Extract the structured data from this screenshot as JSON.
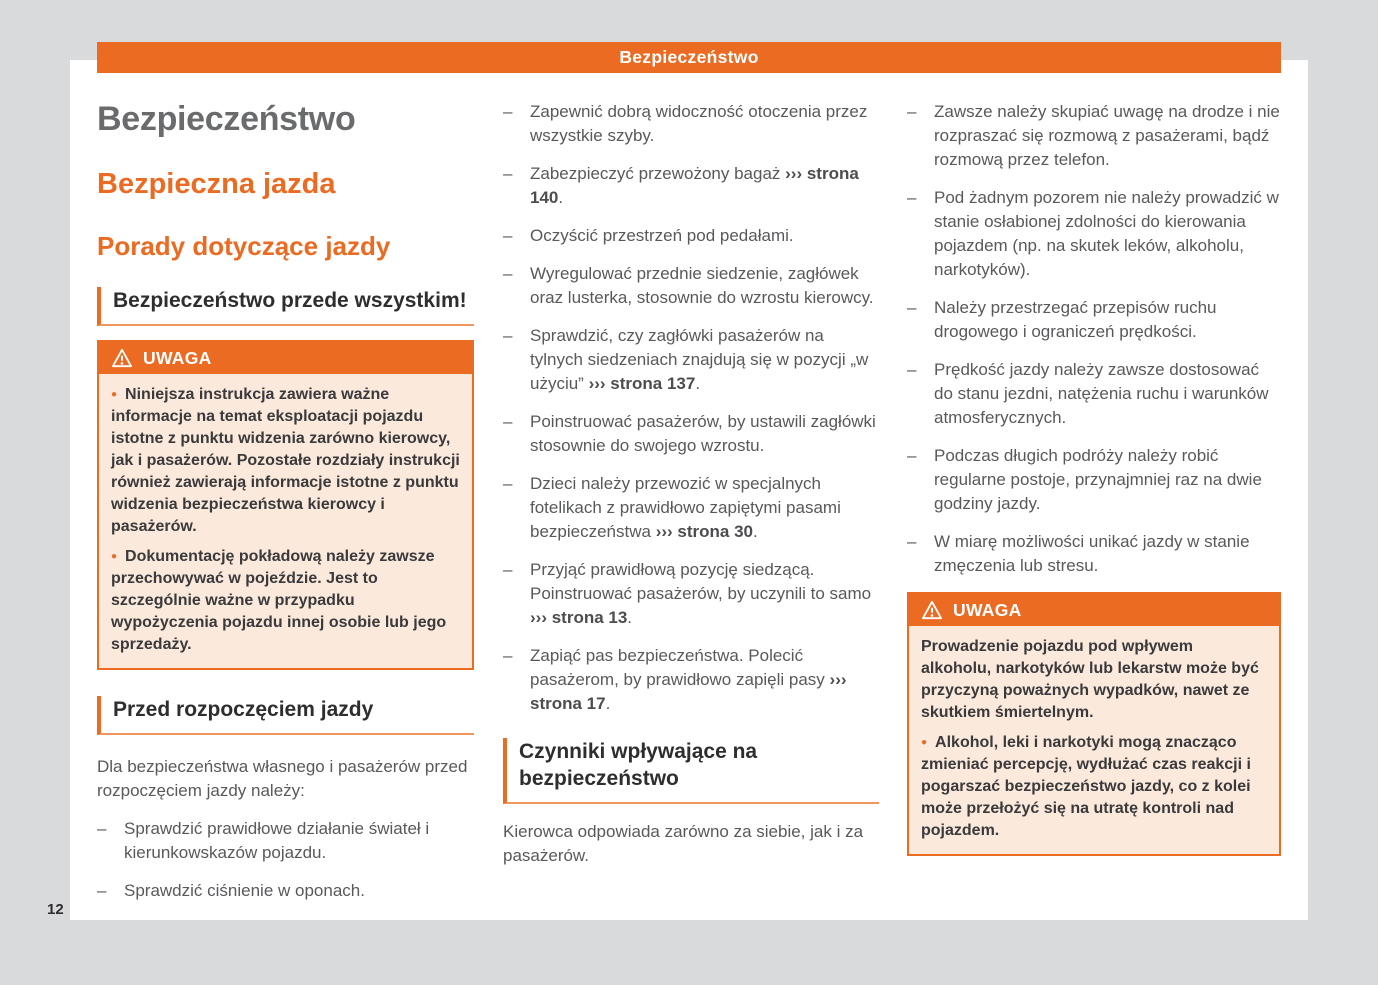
{
  "colors": {
    "accent": "#eb6b23",
    "warning_background": "#fbe9dc",
    "page_background": "#d9dadc",
    "body_text": "#58595b"
  },
  "page_number": "12",
  "header": {
    "title": "Bezpieczeństwo"
  },
  "left": {
    "title": "Bezpieczeństwo",
    "subtitle1": "Bezpieczna jazda",
    "subtitle2": "Porady dotyczące jazdy",
    "section1": "Bezpieczeństwo przede wszystkim!",
    "warning": {
      "title": "UWAGA",
      "icon": "warning-triangle-icon",
      "items": [
        {
          "bullet": true,
          "text": "Niniejsza instrukcja zawiera ważne informacje na temat eksploatacji pojazdu istotne z punktu widzenia zarówno kierowcy, jak i pasażerów. Pozostałe rozdziały instrukcji również zawierają informacje istotne z punktu widzenia bezpieczeństwa kierowcy i pasażerów."
        },
        {
          "bullet": true,
          "text": "Dokumentację pokładową należy zawsze przechowywać w pojeździe. Jest to szczególnie ważne w przypadku wypożyczenia pojazdu innej osobie lub jego sprzedaży."
        }
      ]
    },
    "section2": "Przed rozpoczęciem jazdy",
    "intro": "Dla bezpieczeństwa własnego i pasażerów przed rozpoczęciem jazdy należy:",
    "items": [
      "Sprawdzić prawidłowe działanie świateł i kierunkowskazów pojazdu.",
      "Sprawdzić ciśnienie w oponach."
    ]
  },
  "middle": {
    "items": [
      "Zapewnić dobrą widoczność otoczenia przez wszystkie szyby.",
      [
        {
          "t": "Zabezpieczyć przewożony bagaż "
        },
        {
          "t": "››› strona 140",
          "b": true
        },
        {
          "t": "."
        }
      ],
      "Oczyścić przestrzeń pod pedałami.",
      "Wyregulować przednie siedzenie, zagłówek oraz lusterka, stosownie do wzrostu kierowcy.",
      [
        {
          "t": "Sprawdzić, czy zagłówki pasażerów na tylnych siedzeniach znajdują się w pozycji „w użyciu” "
        },
        {
          "t": "››› strona 137",
          "b": true
        },
        {
          "t": "."
        }
      ],
      "Poinstruować pasażerów, by ustawili zagłówki stosownie do swojego wzrostu.",
      [
        {
          "t": "Dzieci należy przewozić w specjalnych fotelikach z prawidłowo zapiętymi pasami bezpieczeństwa "
        },
        {
          "t": "››› strona 30",
          "b": true
        },
        {
          "t": "."
        }
      ],
      [
        {
          "t": "Przyjąć prawidłową pozycję siedzącą. Poinstruować pasażerów, by uczynili to samo "
        },
        {
          "t": "››› strona 13",
          "b": true
        },
        {
          "t": "."
        }
      ],
      [
        {
          "t": "Zapiąć pas bezpieczeństwa. Polecić pasażerom, by prawidłowo zapięli pasy "
        },
        {
          "t": "››› strona 17",
          "b": true
        },
        {
          "t": "."
        }
      ]
    ],
    "section": "Czynniki wpływające na bezpieczeństwo",
    "outro": "Kierowca odpowiada zarówno za siebie, jak i za pasażerów."
  },
  "right": {
    "items": [
      "Zawsze należy skupiać uwagę na drodze i nie rozpraszać się rozmową z pasażerami, bądź rozmową przez telefon.",
      "Pod żadnym pozorem nie należy prowadzić w stanie osłabionej zdolności do kierowania pojazdem (np. na skutek leków, alkoholu, narkotyków).",
      "Należy przestrzegać przepisów ruchu drogowego i ograniczeń prędkości.",
      "Prędkość jazdy należy zawsze dostosować do stanu jezdni, natężenia ruchu i warunków atmosferycznych.",
      "Podczas długich podróży należy robić regularne postoje, przynajmniej raz na dwie godziny jazdy.",
      "W miarę możliwości unikać jazdy w stanie zmęczenia lub stresu."
    ],
    "warning": {
      "title": "UWAGA",
      "icon": "warning-triangle-icon",
      "items": [
        {
          "bullet": false,
          "text": "Prowadzenie pojazdu pod wpływem alkoholu, narkotyków lub lekarstw może być przyczyną poważnych wypadków, nawet ze skutkiem śmiertelnym."
        },
        {
          "bullet": true,
          "text": "Alkohol, leki i narkotyki mogą znacząco zmieniać percepcję, wydłużać czas reakcji i pogarszać bezpieczeństwo jazdy, co z kolei może przełożyć się na utratę kontroli nad pojazdem."
        }
      ]
    }
  }
}
